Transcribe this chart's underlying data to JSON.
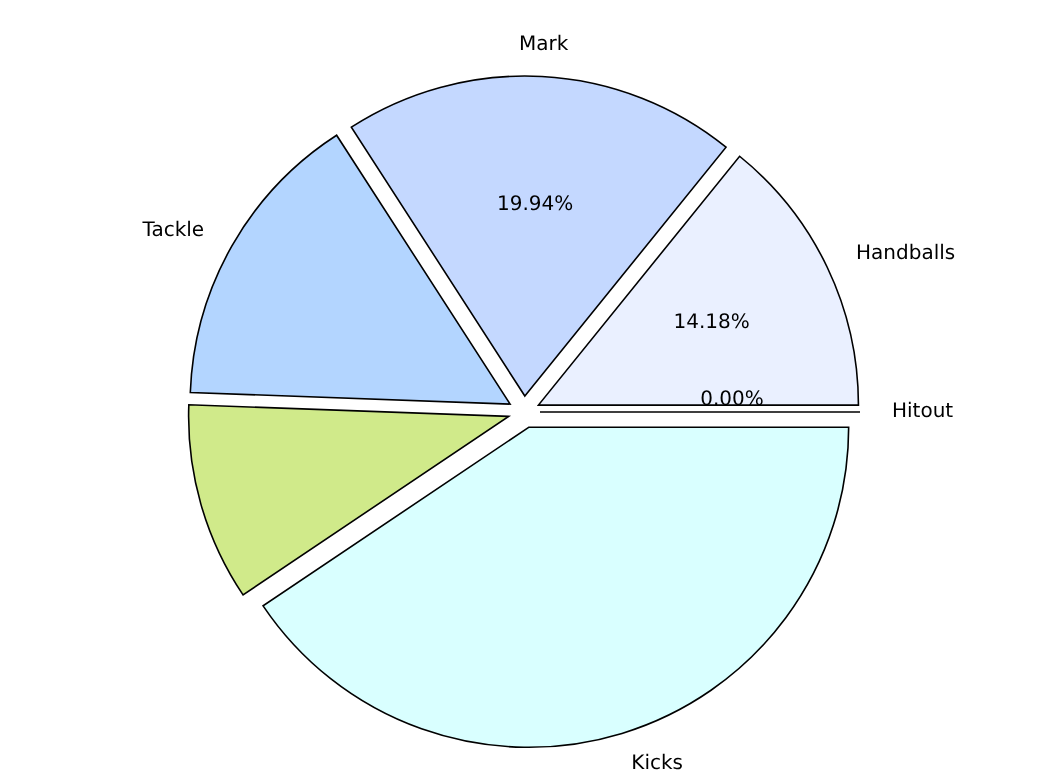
{
  "chart_data": {
    "type": "pie",
    "categories": [
      "Hitout",
      "Handballs",
      "Mark",
      "Tackle",
      null,
      "Kicks"
    ],
    "values": [
      0,
      14.18,
      19.94,
      15.3,
      10,
      40.58
    ],
    "colors": [
      "#c8c8e0",
      "#eaf0ff",
      "#c4d8ff",
      "#b3d5ff",
      "#d0ea8a",
      "#d9ffff"
    ],
    "value_labels": [
      "0.00%",
      "14.18%",
      "19.94%",
      null,
      null,
      null
    ]
  }
}
